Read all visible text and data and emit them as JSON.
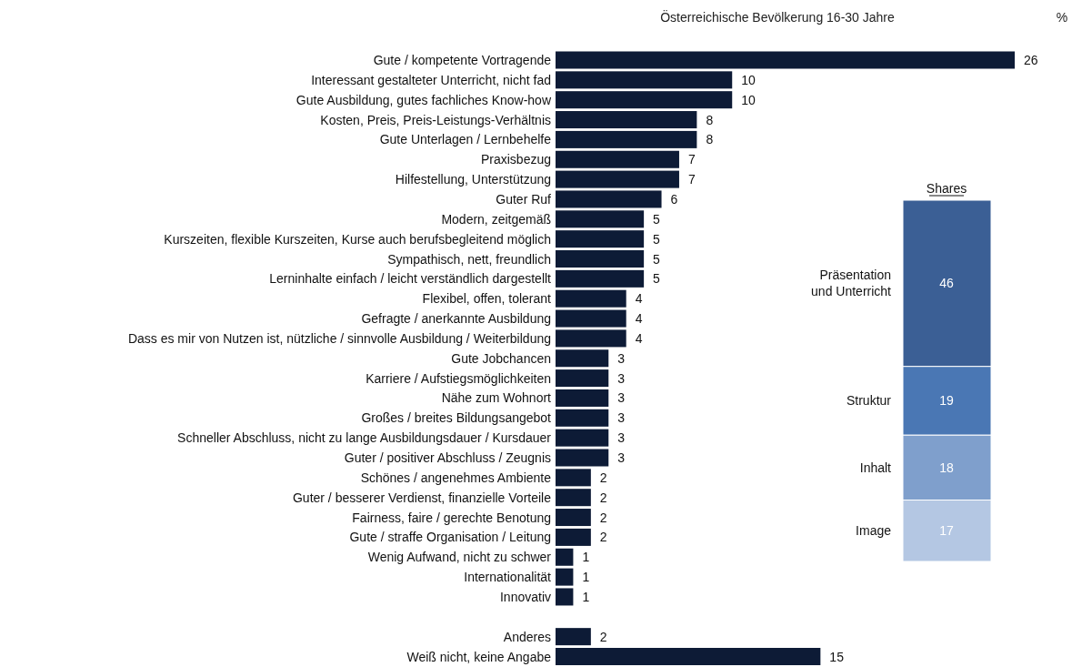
{
  "chart_data": [
    {
      "type": "bar",
      "orientation": "horizontal",
      "title": "Österreichische Bevölkerung 16-30 Jahre",
      "xlabel": "%",
      "color": "#0d1b36",
      "data_labels": true,
      "categories": [
        "Gute / kompetente Vortragende",
        "Interessant gestalteter Unterricht, nicht fad",
        "Gute Ausbildung, gutes fachliches Know-how",
        "Kosten, Preis, Preis-Leistungs-Verhältnis",
        "Gute Unterlagen / Lernbehelfe",
        "Praxisbezug",
        "Hilfestellung, Unterstützung",
        "Guter Ruf",
        "Modern, zeitgemäß",
        "Kurszeiten, flexible Kurszeiten, Kurse auch berufsbegleitend möglich",
        "Sympathisch, nett, freundlich",
        "Lerninhalte einfach / leicht verständlich dargestellt",
        "Flexibel, offen, tolerant",
        "Gefragte / anerkannte Ausbildung",
        "Dass es mir von Nutzen ist, nützliche / sinnvolle Ausbildung / Weiterbildung",
        "Gute Jobchancen",
        "Karriere / Aufstiegsmöglichkeiten",
        "Nähe zum Wohnort",
        "Großes / breites Bildungsangebot",
        "Schneller Abschluss, nicht zu lange Ausbildungsdauer / Kursdauer",
        "Guter / positiver Abschluss / Zeugnis",
        "Schönes / angenehmes Ambiente",
        "Guter / besserer Verdienst, finanzielle Vorteile",
        "Fairness, faire / gerechte Benotung",
        "Gute / straffe Organisation / Leitung",
        "Wenig Aufwand, nicht zu schwer",
        "Internationalität",
        "Innovativ",
        null,
        "Anderes",
        "Weiß nicht, keine Angabe"
      ],
      "values": [
        26,
        10,
        10,
        8,
        8,
        7,
        7,
        6,
        5,
        5,
        5,
        5,
        4,
        4,
        4,
        3,
        3,
        3,
        3,
        3,
        3,
        2,
        2,
        2,
        2,
        1,
        1,
        1,
        null,
        2,
        15
      ]
    },
    {
      "type": "bar",
      "stacked": true,
      "title": "Shares",
      "data_labels": true,
      "categories": [
        null
      ],
      "series": [
        {
          "name": "Image",
          "color": "#b4c7e3",
          "values": [
            17
          ]
        },
        {
          "name": "Inhalt",
          "color": "#7f9fcc",
          "values": [
            18
          ]
        },
        {
          "name": "Struktur",
          "color": "#4a77b4",
          "values": [
            19
          ]
        },
        {
          "name": "Präsentation und Unterricht",
          "color": "#3b5f95",
          "values": [
            46
          ]
        }
      ]
    }
  ]
}
